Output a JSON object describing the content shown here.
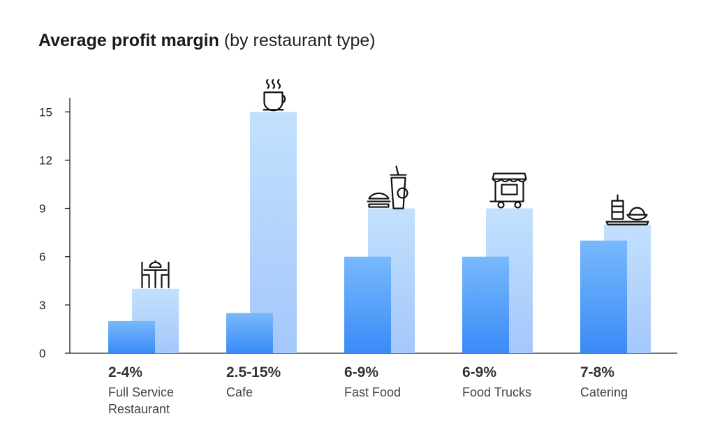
{
  "chart_data": {
    "type": "bar",
    "title": "Average profit margin",
    "subtitle": "(by restaurant type)",
    "xlabel": "",
    "ylabel": "",
    "ylim": [
      0,
      16
    ],
    "yticks": [
      0,
      3,
      6,
      9,
      12,
      15
    ],
    "grid": false,
    "legend": "none",
    "categories": [
      {
        "range": "2-4%",
        "name": [
          "Full Service",
          "Restaurant"
        ],
        "icon": "dining-table-icon"
      },
      {
        "range": "2.5-15%",
        "name": [
          "Cafe"
        ],
        "icon": "coffee-cup-icon"
      },
      {
        "range": "6-9%",
        "name": [
          "Fast Food"
        ],
        "icon": "burger-drink-icon"
      },
      {
        "range": "6-9%",
        "name": [
          "Food Trucks"
        ],
        "icon": "food-truck-icon"
      },
      {
        "range": "7-8%",
        "name": [
          "Catering"
        ],
        "icon": "catering-tray-icon"
      }
    ],
    "series": [
      {
        "values": [
          2,
          2.5,
          6,
          6,
          7
        ],
        "color": "#3d8ef7"
      },
      {
        "values": [
          4,
          15,
          9,
          9,
          8
        ],
        "color": "#b7d7fb"
      }
    ]
  }
}
